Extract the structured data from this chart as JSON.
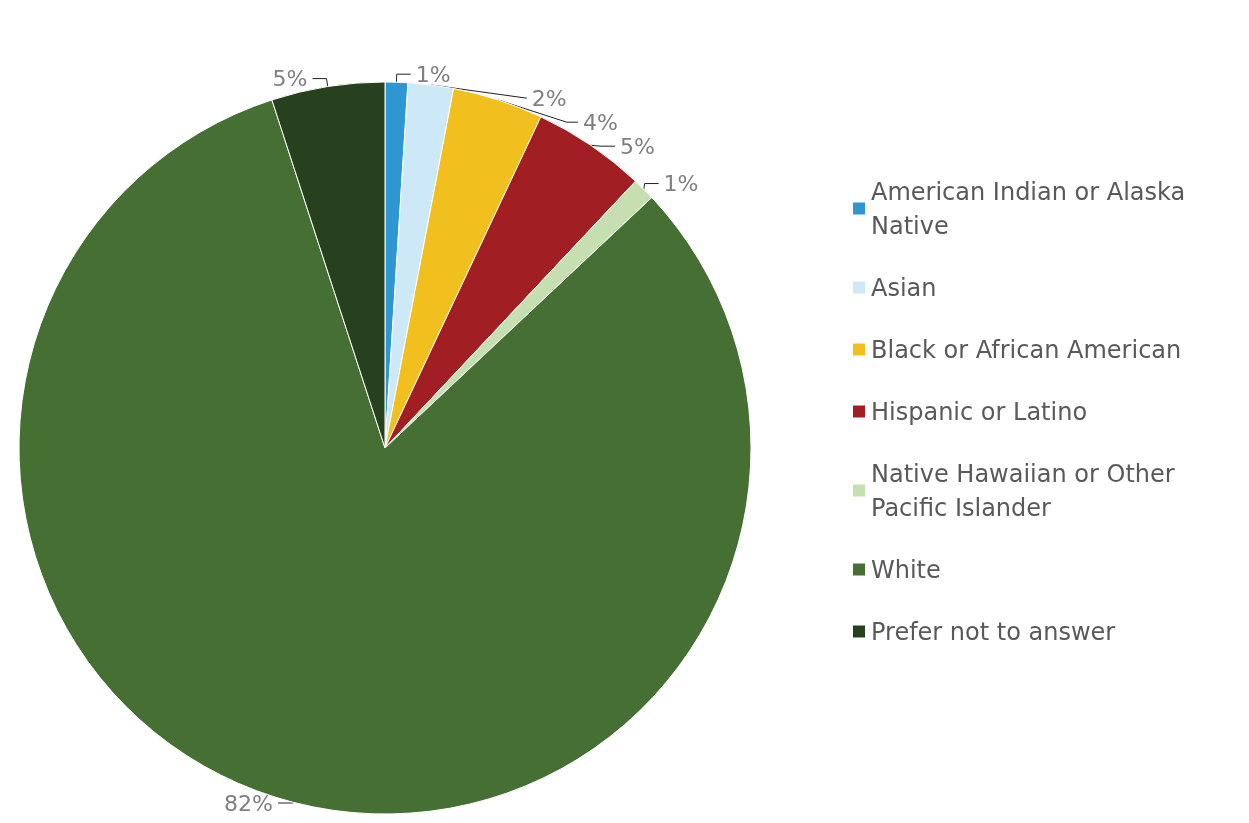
{
  "chart_data": {
    "type": "pie",
    "categories": [
      "American Indian or Alaska Native",
      "Asian",
      "Black or African American",
      "Hispanic or Latino",
      "Native Hawaiian or Other Pacific Islander",
      "White",
      "Prefer not to answer"
    ],
    "values": [
      1,
      2,
      4,
      5,
      1,
      82,
      5
    ],
    "value_labels": [
      "1%",
      "2%",
      "4%",
      "5%",
      "1%",
      "82%",
      "5%"
    ],
    "colors": [
      "#2e96d3",
      "#cde9f8",
      "#f2c01e",
      "#a11f23",
      "#c6dfb1",
      "#466f33",
      "#27411f"
    ],
    "legend": "right"
  }
}
